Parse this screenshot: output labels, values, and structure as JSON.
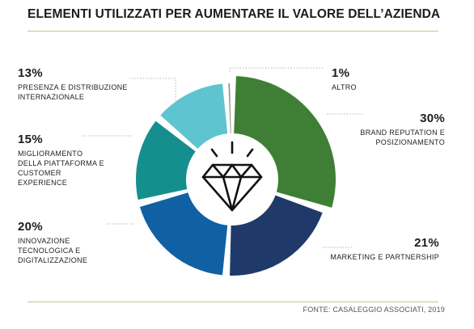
{
  "title": "ELEMENTI UTILIZZATI PER AUMENTARE IL VALORE DELL’AZIENDA",
  "source": "FONTE: CASALEGGIO ASSOCIATI, 2019",
  "icon": "diamond-icon",
  "chart_data": {
    "type": "pie",
    "variant": "donut",
    "title": "ELEMENTI UTILIZZATI PER AUMENTARE IL VALORE DELL’AZIENDA",
    "slices": [
      {
        "label": "BRAND REPUTATION E POSIZIONAMENTO",
        "value": 30,
        "display": "30%",
        "color": "#3f7f35"
      },
      {
        "label": "MARKETING E PARTNERSHIP",
        "value": 21,
        "display": "21%",
        "color": "#1f3a69"
      },
      {
        "label": "INNOVAZIONE TECNOLOGICA E DIGITALIZZAZIONE",
        "value": 20,
        "display": "20%",
        "color": "#0f61a3"
      },
      {
        "label": "MIGLIORAMENTO DELLA PIATTAFORMA E CUSTOMER EXPERIENCE",
        "value": 15,
        "display": "15%",
        "color": "#158f8e"
      },
      {
        "label": "PRESENZA E DISTRIBUZIONE INTERNAZIONALE",
        "value": 13,
        "display": "13%",
        "color": "#5ec4cf"
      },
      {
        "label": "ALTRO",
        "value": 1,
        "display": "1%",
        "color": "#8a8a8a"
      }
    ]
  },
  "labels": {
    "altro": {
      "pct": "1%",
      "lines": [
        "ALTRO"
      ]
    },
    "brand": {
      "pct": "30%",
      "lines": [
        "BRAND REPUTATION E",
        "POSIZIONAMENTO"
      ]
    },
    "marketing": {
      "pct": "21%",
      "lines": [
        "MARKETING E PARTNERSHIP"
      ]
    },
    "innovazione": {
      "pct": "20%",
      "lines": [
        "INNOVAZIONE",
        "TECNOLOGICA E",
        "DIGITALIZZAZIONE"
      ]
    },
    "piattaforma": {
      "pct": "15%",
      "lines": [
        "MIGLIORAMENTO",
        "DELLA PIATTAFORMA E",
        "CUSTOMER",
        "EXPERIENCE"
      ]
    },
    "presenza": {
      "pct": "13%",
      "lines": [
        "PRESENZA E DISTRIBUZIONE",
        "INTERNAZIONALE"
      ]
    }
  }
}
